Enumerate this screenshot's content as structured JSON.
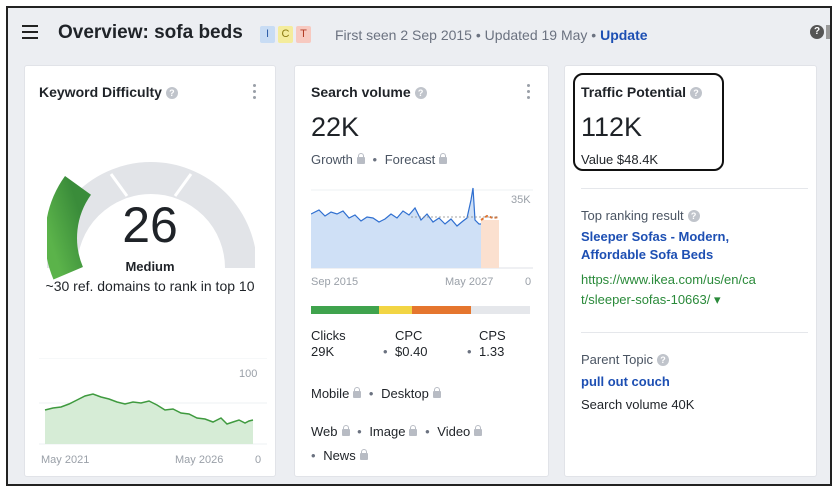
{
  "header": {
    "title": "Overview: sofa beds",
    "badges": [
      "I",
      "C",
      "T"
    ],
    "first_seen": "First seen 2 Sep 2015",
    "separator": "•",
    "updated": "Updated 19 May",
    "update_link": "Update",
    "help_glyph": "?"
  },
  "keyword_difficulty": {
    "title": "Keyword Difficulty",
    "value": "26",
    "value_fraction": 0.26,
    "label": "Medium",
    "description": "~30 ref. domains to rank in top 10",
    "chart": {
      "y_max_label": "100",
      "y_min_label": "0",
      "x_start": "May 2021",
      "x_end": "May 2026"
    },
    "colors": {
      "gauge_fill": "#3f9a3f",
      "gauge_track": "#e2e4e8"
    }
  },
  "search_volume": {
    "title": "Search volume",
    "value": "22K",
    "growth_label": "Growth",
    "forecast_label": "Forecast",
    "chart": {
      "y_max_label": "35K",
      "y_min_label": "0",
      "x_start": "Sep 2015",
      "x_end": "May 2027"
    },
    "segments": [
      {
        "color": "#3fa34d",
        "share": 0.31
      },
      {
        "color": "#f2d544",
        "share": 0.15
      },
      {
        "color": "#e5762e",
        "share": 0.27
      },
      {
        "color": "#e5e7eb",
        "share": 0.27
      }
    ],
    "metrics": [
      {
        "label": "Clicks",
        "value": "29K"
      },
      {
        "label": "CPC",
        "value": "$0.40"
      },
      {
        "label": "CPS",
        "value": "1.33"
      }
    ],
    "devices": [
      "Mobile",
      "Desktop"
    ],
    "types": [
      "Web",
      "Image",
      "Video",
      "News"
    ]
  },
  "traffic_potential": {
    "title": "Traffic Potential",
    "value": "112K",
    "value_label": "Value $48.4K",
    "top_ranking_label": "Top ranking result",
    "top_ranking_title_1": "Sleeper Sofas - Modern,",
    "top_ranking_title_2": "Affordable Sofa Beds",
    "top_ranking_url_1": "https://www.ikea.com/us/en/ca",
    "top_ranking_url_2": "t/sleeper-sofas-10663/ ▾",
    "parent_topic_label": "Parent Topic",
    "parent_topic": "pull out couch",
    "parent_volume": "Search volume 40K"
  }
}
